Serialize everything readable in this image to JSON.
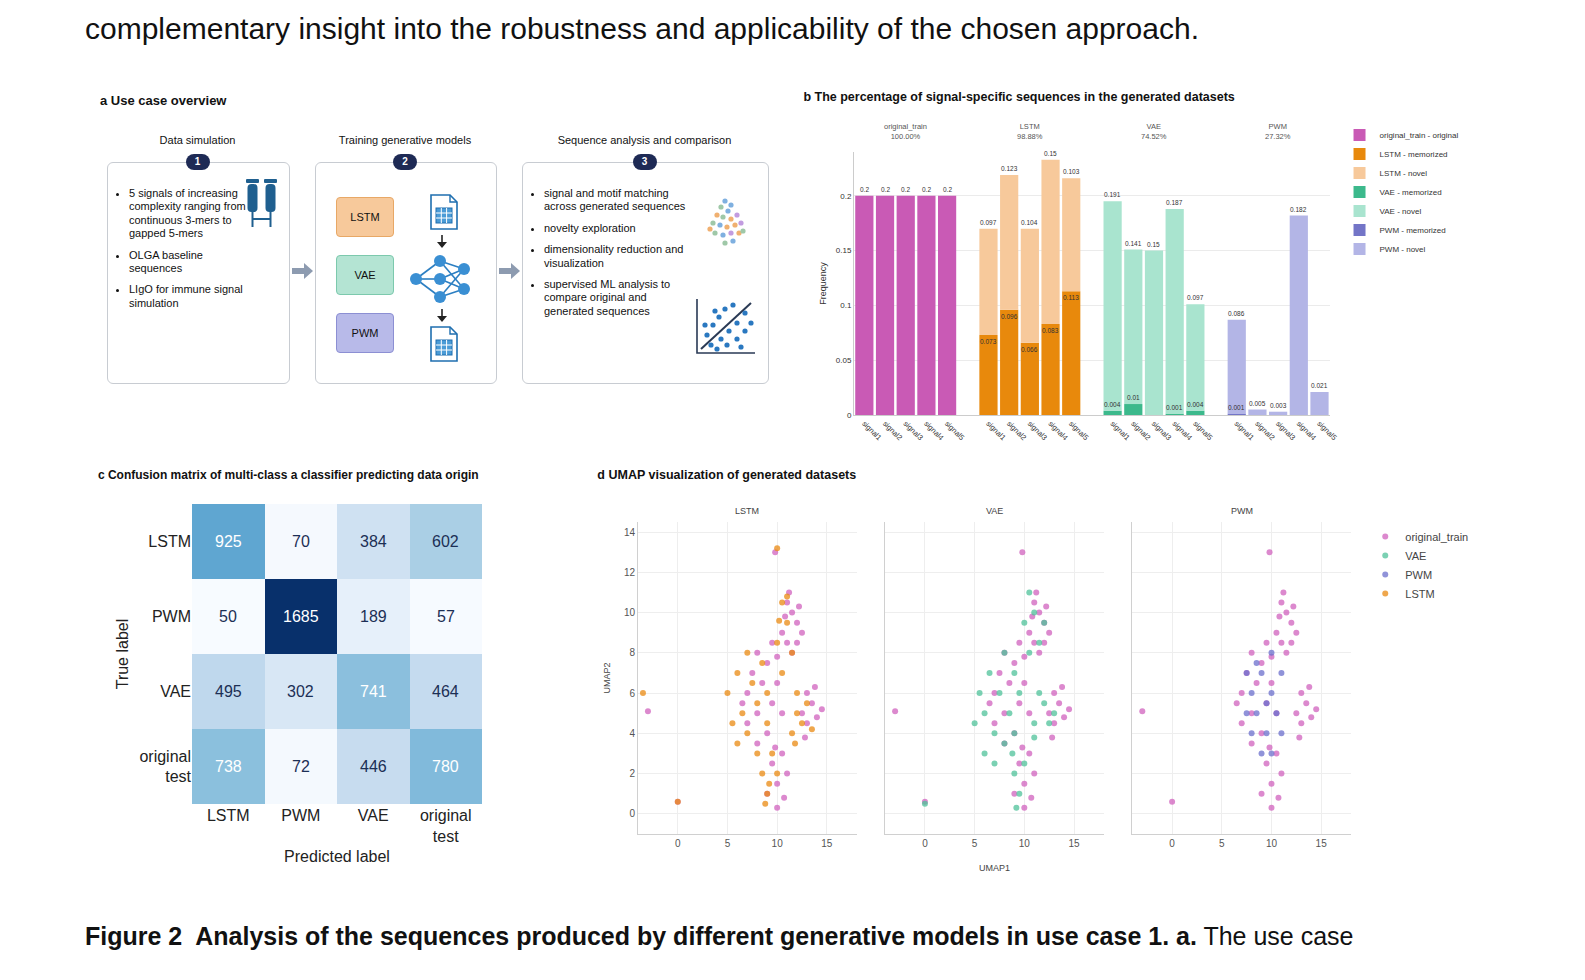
{
  "text_above": "complementary insight into the robustness and applicability of the chosen approach.",
  "panel_a": {
    "title": "a Use case overview",
    "steps": [
      {
        "number": 1,
        "heading": "Data simulation",
        "bullets": [
          "5 signals of increasing complexity ranging from continuous 3-mers to gapped 5-mers",
          "OLGA baseline sequences",
          "LIgO for immune signal simulation"
        ]
      },
      {
        "number": 2,
        "heading": "Training generative models",
        "models": [
          "LSTM",
          "VAE",
          "PWM"
        ]
      },
      {
        "number": 3,
        "heading": "Sequence analysis and comparison",
        "bullets": [
          "signal and motif matching across generated sequences",
          "novelty exploration",
          "dimensionality reduction and visualization",
          "supervised ML analysis to compare original and generated sequences"
        ]
      }
    ]
  },
  "chart_data": [
    {
      "type": "bar",
      "title": "b The percentage of signal-specific sequences in the generated datasets",
      "y_label": "Frequency",
      "categories": [
        "signal1",
        "signal2",
        "signal3",
        "signal4",
        "signal5",
        null,
        "signal1",
        "signal2",
        "signal3",
        "signal4",
        "signal5",
        null,
        "signal1",
        "signal2",
        "signal3",
        "signal4",
        "signal5",
        null,
        "signal1",
        "signal2",
        "signal3",
        "signal4",
        "signal5"
      ],
      "groups": [
        {
          "name": "original_train",
          "share_label": "100.00%"
        },
        {
          "name": "LSTM",
          "share_label": "98.88%"
        },
        {
          "name": "VAE",
          "share_label": "74.52%"
        },
        {
          "name": "PWM",
          "share_label": "27.32%"
        }
      ],
      "series": [
        {
          "name": "original_train - original",
          "color": "#c95ab5",
          "values": [
            0.2,
            0.2,
            0.2,
            0.2,
            0.2,
            null,
            null,
            null,
            null,
            null,
            null,
            null,
            null,
            null,
            null,
            null,
            null,
            null,
            null,
            null,
            null,
            null,
            null
          ]
        },
        {
          "name": "LSTM - memorized",
          "color": "#e8890c",
          "values": [
            null,
            null,
            null,
            null,
            null,
            null,
            0.073,
            0.096,
            0.066,
            0.083,
            0.113,
            null,
            null,
            null,
            null,
            null,
            null,
            null,
            null,
            null,
            null,
            null,
            null
          ]
        },
        {
          "name": "LSTM - novel",
          "color": "#f7c99b",
          "values": [
            null,
            null,
            null,
            null,
            null,
            null,
            0.097,
            0.123,
            0.104,
            0.15,
            0.103,
            null,
            null,
            null,
            null,
            null,
            null,
            null,
            null,
            null,
            null,
            null,
            null
          ]
        },
        {
          "name": "VAE - memorized",
          "color": "#3cb98c",
          "values": [
            null,
            null,
            null,
            null,
            null,
            null,
            null,
            null,
            null,
            null,
            null,
            null,
            0.004,
            0.01,
            null,
            0.001,
            0.004,
            null,
            null,
            null,
            null,
            null,
            null
          ]
        },
        {
          "name": "VAE - novel",
          "color": "#a9e4cf",
          "values": [
            null,
            null,
            null,
            null,
            null,
            null,
            null,
            null,
            null,
            null,
            null,
            null,
            0.191,
            0.141,
            0.15,
            0.187,
            0.097,
            null,
            null,
            null,
            null,
            null,
            null
          ]
        },
        {
          "name": "PWM - memorized",
          "color": "#7375c7",
          "values": [
            null,
            null,
            null,
            null,
            null,
            null,
            null,
            null,
            null,
            null,
            null,
            null,
            null,
            null,
            null,
            null,
            null,
            null,
            0.001,
            null,
            null,
            null,
            null
          ]
        },
        {
          "name": "PWM - novel",
          "color": "#b3b5e6",
          "values": [
            null,
            null,
            null,
            null,
            null,
            null,
            null,
            null,
            null,
            null,
            null,
            null,
            null,
            null,
            null,
            null,
            null,
            null,
            0.086,
            0.005,
            0.003,
            0.182,
            0.021
          ]
        }
      ],
      "ylim": [
        0,
        0.24
      ],
      "yticks": [
        0,
        0.05,
        0.1,
        0.15,
        0.2
      ],
      "stacked": true,
      "data_labels": true,
      "grid": true,
      "legend": "top right"
    },
    {
      "type": "heatmap",
      "title": "c Confusion matrix of multi-class a classifier predicting data origin",
      "x_label": "Predicted label",
      "y_label": "True label",
      "x_categories": [
        "LSTM",
        "PWM",
        "VAE",
        "original test"
      ],
      "y_categories": [
        "LSTM",
        "PWM",
        "VAE",
        "original test"
      ],
      "cells": [
        [
          925,
          70,
          384,
          602
        ],
        [
          50,
          1685,
          189,
          57
        ],
        [
          495,
          302,
          741,
          464
        ],
        [
          738,
          72,
          446,
          780
        ]
      ],
      "data_labels": true
    },
    {
      "type": "scatter",
      "title": "d UMAP visualization of generated datasets",
      "x_label": "UMAP1",
      "y_label": "UMAP2",
      "xlim": [
        -4,
        18
      ],
      "xticks": [
        0,
        5,
        10,
        15
      ],
      "ylim": [
        -1,
        14.5
      ],
      "yticks": [
        0,
        2,
        4,
        6,
        8,
        10,
        12,
        14
      ],
      "grid": true,
      "legend": "right",
      "subplots": [
        {
          "title": "LSTM",
          "series": [
            "original_train",
            "LSTM"
          ]
        },
        {
          "title": "VAE",
          "series": [
            "original_train",
            "VAE"
          ]
        },
        {
          "title": "PWM",
          "series": [
            "original_train",
            "PWM"
          ]
        }
      ],
      "series": [
        {
          "name": "original_train",
          "color": "#d062bd",
          "x": [
            11,
            11.5,
            12,
            10.5,
            11,
            12,
            12.5,
            11.5,
            10.8,
            12.2,
            11.2,
            7,
            7.5,
            8,
            8.5,
            9,
            9.5,
            10,
            7,
            8,
            9,
            10.5,
            8,
            9.5,
            6.5,
            10,
            12.5,
            13,
            13.5,
            14,
            13,
            14.5,
            12.8,
            13.8,
            9.5,
            10,
            10.5,
            9,
            10,
            11,
            9.8,
            10.7,
            -3,
            0,
            9.8
          ],
          "y": [
            10.5,
            10,
            9.5,
            9,
            8.5,
            8.5,
            9,
            8,
            9.8,
            10.3,
            11,
            6,
            7,
            5,
            6.5,
            7.5,
            5.5,
            6.5,
            4.5,
            3.5,
            4,
            5,
            8,
            8.5,
            5.5,
            7.8,
            5,
            4.5,
            5.5,
            4.8,
            6,
            5.2,
            3.8,
            6.3,
            2.5,
            1.5,
            3,
            1,
            0.3,
            2,
            3.3,
            0.8,
            5.1,
            0.6,
            13
          ]
        },
        {
          "name": "VAE",
          "color": "#4fc19a",
          "x": [
            10.5,
            11,
            10,
            11.5,
            10.5,
            12,
            5.5,
            6,
            6.5,
            7,
            7.5,
            8,
            8.5,
            9,
            6,
            7,
            8,
            9,
            9.5,
            5,
            11,
            12,
            12.5,
            11.5,
            13,
            11,
            9,
            9.5,
            10,
            9.2,
            8.8,
            0
          ],
          "y": [
            11,
            10,
            9.5,
            8.5,
            8,
            9.5,
            6,
            5,
            7,
            4,
            6,
            8,
            5,
            7,
            3,
            2.5,
            3.5,
            4,
            6,
            4.5,
            4.5,
            5.5,
            4.5,
            6,
            5,
            3.8,
            2,
            1,
            2.5,
            0.3,
            3,
            0.5
          ]
        },
        {
          "name": "PWM",
          "color": "#6b6fcc",
          "x": [
            8,
            8.5,
            9,
            9.5,
            10,
            10.5,
            9,
            8,
            11,
            7.5,
            10,
            11,
            9.5,
            8.5,
            10,
            7.5
          ],
          "y": [
            6,
            5,
            7,
            4,
            6,
            5,
            3,
            4,
            7,
            7,
            8,
            4,
            5.5,
            7.5,
            3,
            5
          ]
        },
        {
          "name": "LSTM",
          "color": "#e98a12",
          "x": [
            10.5,
            11,
            10,
            11.5,
            10.5,
            11,
            10.2,
            5,
            6,
            6.5,
            7,
            7.5,
            8,
            8.5,
            6,
            7,
            8,
            9,
            5.5,
            9,
            11.5,
            12,
            12.5,
            13,
            12,
            13.5,
            11.8,
            8.5,
            9,
            9.5,
            8.8,
            10,
            9.2,
            -3.5,
            0,
            10
          ],
          "y": [
            10.5,
            9.5,
            8.5,
            8,
            7,
            10.8,
            9.6,
            6,
            7,
            5,
            4,
            6.5,
            5.5,
            7.5,
            3.5,
            8,
            3,
            6,
            4.5,
            4.5,
            4,
            5,
            4.5,
            5.5,
            6,
            4.2,
            3.5,
            2,
            1,
            3,
            0.5,
            2,
            1.5,
            6,
            0.6,
            13.2
          ]
        }
      ]
    }
  ],
  "caption": {
    "bold": "Figure 2  Analysis of the sequences produced by different generative models in use case 1. a.",
    "normal": "The use case"
  }
}
